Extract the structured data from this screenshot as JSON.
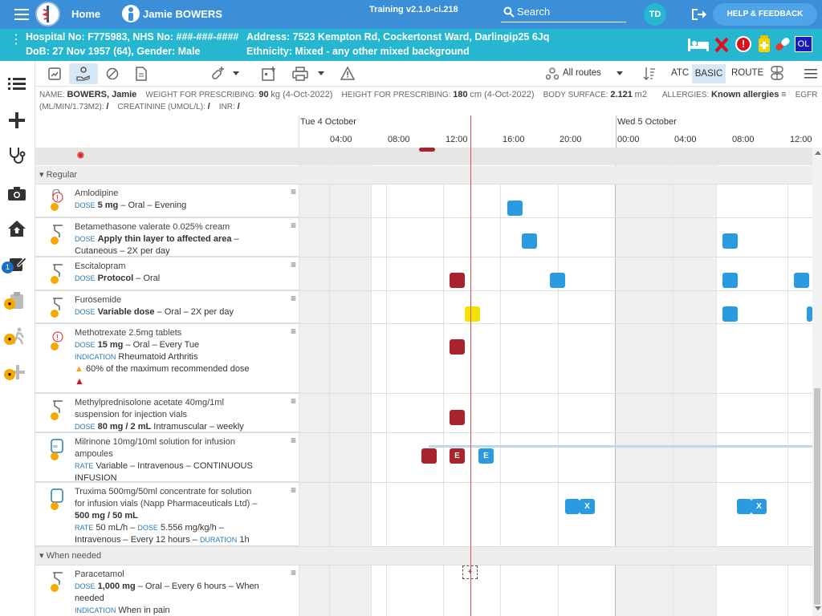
{
  "topbar": {
    "home": "Home",
    "patient": "Jamie BOWERS",
    "version": "Training v2.1.0-ci.218",
    "search": "Search",
    "initials": "TD",
    "help": "HELP & FEEDBACK"
  },
  "patient": {
    "line1": "Hospital No: F775983, NHS No: ###-###-####",
    "line2": "DoB: 27 Nov 1957 (64), Gender: Male",
    "addr": "Address: 7523 Kempton Rd, Cockertonst Ward, Darlingip25 6Jq",
    "eth": "Ethnicity: Mixed - any other mixed background",
    "ol": "OL"
  },
  "sidebar": {
    "badge": "1"
  },
  "toolbar": {
    "routes": "All routes",
    "atc": "ATC",
    "basic": "BASIC",
    "route": "ROUTE"
  },
  "info": {
    "name_lbl": "NAME",
    "name": "BOWERS, Jamie",
    "weight_lbl": "WEIGHT FOR PRESCRIBING:",
    "weight": "90",
    "weight_unit": "kg (4-Oct-2022)",
    "height_lbl": "HEIGHT FOR PRESCRIBING:",
    "height": "180",
    "height_unit": "cm (4-Oct-2022)",
    "bsa_lbl": "BODY SURFACE:",
    "bsa": "2.121",
    "bsa_unit": "m2",
    "allergy_lbl": "ALLERGIES:",
    "allergy": "Known allergies",
    "egfr_lbl": "EGFR",
    "egfr_unit": "(ML/MIN/1.73M2):",
    "egfr": "/",
    "creat_lbl": "CREATININE (UMOL/L):",
    "creat": "/",
    "inr_lbl": "INR:",
    "inr": "/"
  },
  "timeline": {
    "day1": "Tue 4 October",
    "day2": "Wed 5 October",
    "hours": [
      "04:00",
      "08:00",
      "12:00",
      "16:00",
      "20:00",
      "00:00",
      "04:00",
      "08:00",
      "12:00"
    ]
  },
  "sections": {
    "regular": "Regular",
    "prn": "When needed"
  },
  "meds": [
    {
      "name": "Amlodipine",
      "l2_lbl": "DOSE",
      "l2_b": "5 mg",
      "l2": "– Oral – Evening"
    },
    {
      "name": "Betamethasone valerate 0.025% cream",
      "l2_lbl": "DOSE",
      "l2_b": "Apply thin layer to affected area",
      "l2": "–",
      "l3": "Cutaneous – 2X per day"
    },
    {
      "name": "Escitalopram",
      "l2_lbl": "DOSE",
      "l2_b": "Protocol",
      "l2": "– Oral"
    },
    {
      "name": "Furosemide",
      "l2_lbl": "DOSE",
      "l2_b": "Variable dose",
      "l2": "– Oral – 2X per day"
    },
    {
      "name": "Methotrexate 2.5mg tablets",
      "l2_lbl": "DOSE",
      "l2_b": "15 mg",
      "l2": "– Oral – Every Tue",
      "l3_lbl": "INDICATION",
      "l3": "Rheumatoid Arthritis",
      "warn": "60% of the maximum recommended dose"
    },
    {
      "name": "Methylprednisolone acetate 40mg/1ml",
      "name2": "suspension for injection vials",
      "l2_lbl": "DOSE",
      "l2_b": "80 mg / 2 mL",
      "l2": "Intramuscular – weekly"
    },
    {
      "name": "Milrinone 10mg/10ml solution for infusion",
      "name2": "ampoules",
      "l2_lbl": "RATE",
      "l2": "Variable – Intravenous – CONTINUOUS",
      "l3": "INFUSION"
    },
    {
      "name": "Truxima 500mg/50ml concentrate for solution",
      "name2": "for infusion vials (Napp Pharmaceuticals Ltd) –",
      "l2_b": "500 mg / 50 mL",
      "l3_lbl": "RATE",
      "l3": "50 mL/h –",
      "l3_lbl2": "DOSE",
      "l3b": "5.556 mg/kg/h –",
      "l4": "Intravenous – Every 12 hours –",
      "l4_lbl": "DURATION",
      "l4b": "1h"
    },
    {
      "name": "Paracetamol",
      "l2_lbl": "DOSE",
      "l2_b": "1,000 mg",
      "l2": "– Oral – Every 6 hours – When",
      "l3": "needed",
      "l4_lbl": "INDICATION",
      "l4": "When in pain"
    }
  ],
  "blocks": {
    "e": "E",
    "x": "X",
    "plus": "+"
  }
}
